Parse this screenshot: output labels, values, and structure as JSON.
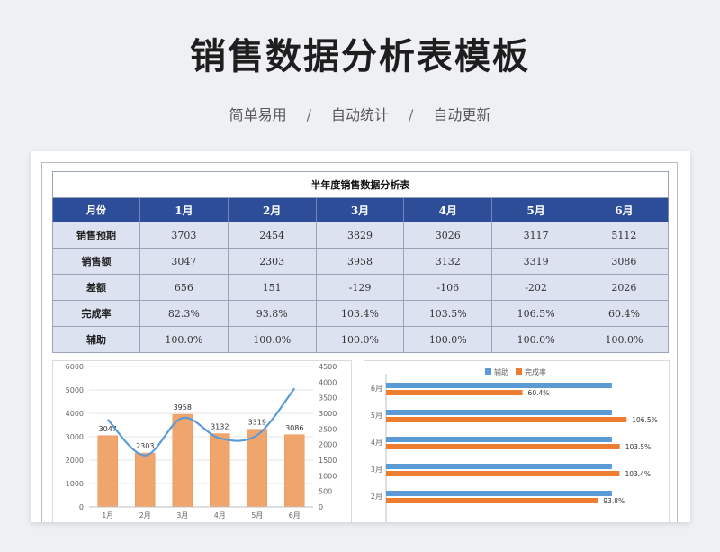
{
  "header": {
    "title": "销售数据分析表模板",
    "features": [
      "简单易用",
      "自动统计",
      "自动更新"
    ],
    "separator": "/"
  },
  "table": {
    "title": "半年度销售数据分析表",
    "corner_label": "月份",
    "months": [
      "1月",
      "2月",
      "3月",
      "4月",
      "5月",
      "6月"
    ],
    "rows": [
      {
        "label": "销售预期",
        "values": [
          "3703",
          "2454",
          "3829",
          "3026",
          "3117",
          "5112"
        ]
      },
      {
        "label": "销售额",
        "values": [
          "3047",
          "2303",
          "3958",
          "3132",
          "3319",
          "3086"
        ]
      },
      {
        "label": "差额",
        "values": [
          "656",
          "151",
          "-129",
          "-106",
          "-202",
          "2026"
        ]
      },
      {
        "label": "完成率",
        "values": [
          "82.3%",
          "93.8%",
          "103.4%",
          "103.5%",
          "106.5%",
          "60.4%"
        ]
      },
      {
        "label": "辅助",
        "values": [
          "100.0%",
          "100.0%",
          "100.0%",
          "100.0%",
          "100.0%",
          "100.0%"
        ]
      }
    ]
  },
  "chart_data": [
    {
      "type": "bar",
      "categories": [
        "1月",
        "2月",
        "3月",
        "4月",
        "5月",
        "6月"
      ],
      "series": [
        {
          "values": [
            3047,
            2303,
            3958,
            3132,
            3319,
            3086
          ],
          "axis": "left",
          "color": "#f0a56d"
        },
        {
          "values": [
            2800,
            1650,
            2850,
            2200,
            2300,
            3800
          ],
          "axis": "right",
          "kind": "line",
          "color": "#5b9bd5"
        }
      ],
      "ylim_left": [
        0,
        6000
      ],
      "ylim_right": [
        0,
        4500
      ],
      "yticks_left": [
        "0",
        "1000",
        "2000",
        "3000",
        "4000",
        "5000",
        "6000"
      ],
      "yticks_right": [
        "0",
        "500",
        "1000",
        "1500",
        "2000",
        "2500",
        "3000",
        "3500",
        "4000",
        "4500"
      ],
      "data_labels": [
        "3047",
        "2303",
        "3958",
        "3132",
        "3319",
        "3086"
      ],
      "grid": true
    },
    {
      "type": "bar",
      "orientation": "horizontal",
      "categories": [
        "2月",
        "3月",
        "4月",
        "5月",
        "6月"
      ],
      "series": [
        {
          "name": "辅助",
          "values": [
            100,
            100,
            100,
            100,
            100
          ],
          "color": "#5b9bd5"
        },
        {
          "name": "完成率",
          "values": [
            93.8,
            103.4,
            103.5,
            106.5,
            60.4
          ],
          "color": "#ed7d31"
        }
      ],
      "data_labels": [
        "93.8%",
        "103.4%",
        "103.5%",
        "106.5%",
        "60.4%"
      ],
      "xlim": [
        0,
        110
      ],
      "legend": "top"
    }
  ]
}
